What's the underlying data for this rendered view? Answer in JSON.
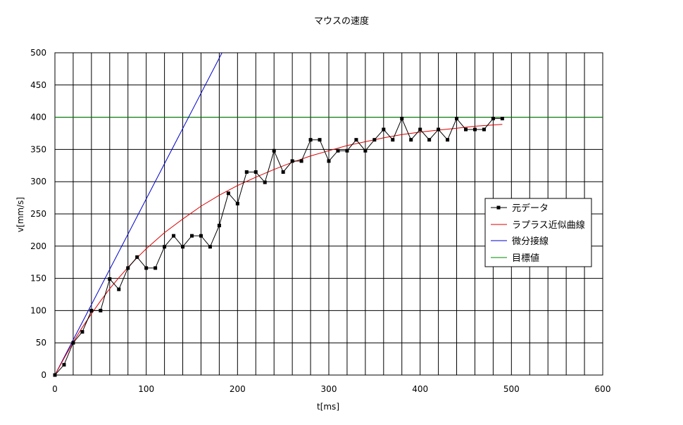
{
  "chart_data": {
    "type": "line",
    "title": "マウスの速度",
    "xlabel": "t[ms]",
    "ylabel": "v[mm/s]",
    "xlim": [
      0,
      600
    ],
    "ylim": [
      0,
      500
    ],
    "x_ticks": [
      0,
      100,
      200,
      300,
      400,
      500,
      600
    ],
    "y_ticks": [
      0,
      50,
      100,
      150,
      200,
      250,
      300,
      350,
      400,
      450,
      500
    ],
    "grid": true,
    "grid_x_step": 20,
    "grid_y_step": 50,
    "legend_position": "right",
    "series": [
      {
        "name": "元データ",
        "color": "#000000",
        "marker": "square",
        "x": [
          0,
          10,
          20,
          30,
          40,
          50,
          60,
          70,
          80,
          90,
          100,
          110,
          120,
          130,
          140,
          150,
          160,
          170,
          180,
          190,
          200,
          210,
          220,
          230,
          240,
          250,
          260,
          270,
          280,
          290,
          300,
          310,
          320,
          330,
          340,
          350,
          360,
          370,
          380,
          390,
          400,
          410,
          420,
          430,
          440,
          450,
          460,
          470,
          480,
          490
        ],
        "y": [
          0,
          16,
          50,
          67,
          100,
          100,
          149,
          133,
          166,
          183,
          166,
          166,
          199,
          216,
          199,
          216,
          216,
          199,
          232,
          282,
          266,
          315,
          315,
          299,
          348,
          315,
          332,
          332,
          365,
          365,
          332,
          348,
          348,
          365,
          348,
          365,
          381,
          365,
          398,
          365,
          381,
          365,
          381,
          365,
          398,
          381,
          381,
          381,
          398,
          398
        ]
      },
      {
        "name": "ラプラス近似曲線",
        "color": "#dd0000",
        "x": [
          0,
          10,
          20,
          30,
          40,
          50,
          60,
          70,
          80,
          90,
          100,
          120,
          140,
          160,
          180,
          200,
          220,
          240,
          260,
          280,
          300,
          320,
          340,
          360,
          380,
          400,
          420,
          440,
          460,
          480,
          490
        ],
        "y": [
          0,
          26,
          51,
          74,
          95,
          115,
          134,
          151,
          167,
          182,
          196,
          221,
          242,
          262,
          279,
          294,
          307,
          319,
          330,
          340,
          348,
          356,
          362,
          368,
          373,
          377,
          380,
          383,
          386,
          388,
          389
        ]
      },
      {
        "name": "微分接線",
        "color": "#0000cc",
        "x": [
          0,
          183
        ],
        "y": [
          0,
          500
        ]
      },
      {
        "name": "目標値",
        "color": "#008800",
        "x": [
          0,
          600
        ],
        "y": [
          400,
          400
        ]
      }
    ]
  }
}
